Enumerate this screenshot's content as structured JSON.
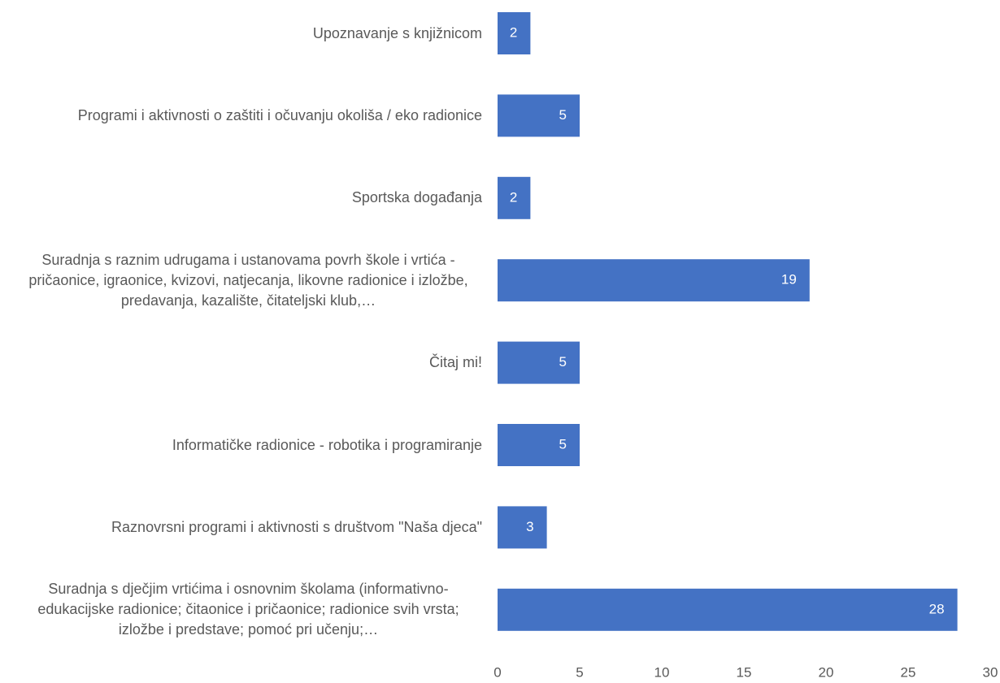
{
  "chart_data": {
    "type": "barh",
    "categories": [
      "Upoznavanje s knjižnicom",
      "Programi i aktivnosti o zaštiti i očuvanju okoliša / eko radionice",
      "Sportska događanja",
      "Suradnja s raznim udrugama i ustanovama povrh škole i vrtića - pričaonice, igraonice, kvizovi, natjecanja, likovne radionice i izložbe, predavanja, kazalište, čitateljski klub,…",
      "Čitaj mi!",
      "Informatičke radionice - robotika i programiranje",
      "Raznovrsni programi i aktivnosti s društvom \"Naša djeca\"",
      "Suradnja s dječjim vrtićima i osnovnim školama (informativno-edukacijske radionice; čitaonice i pričaonice; radionice svih vrsta; izložbe i predstave; pomoć pri učenju;…"
    ],
    "values": [
      2,
      5,
      2,
      19,
      5,
      5,
      3,
      28
    ],
    "color": "#4472c4",
    "xlim": [
      0,
      30
    ],
    "xticks": [
      0,
      5,
      10,
      15,
      20,
      25,
      30
    ],
    "grid": false
  }
}
